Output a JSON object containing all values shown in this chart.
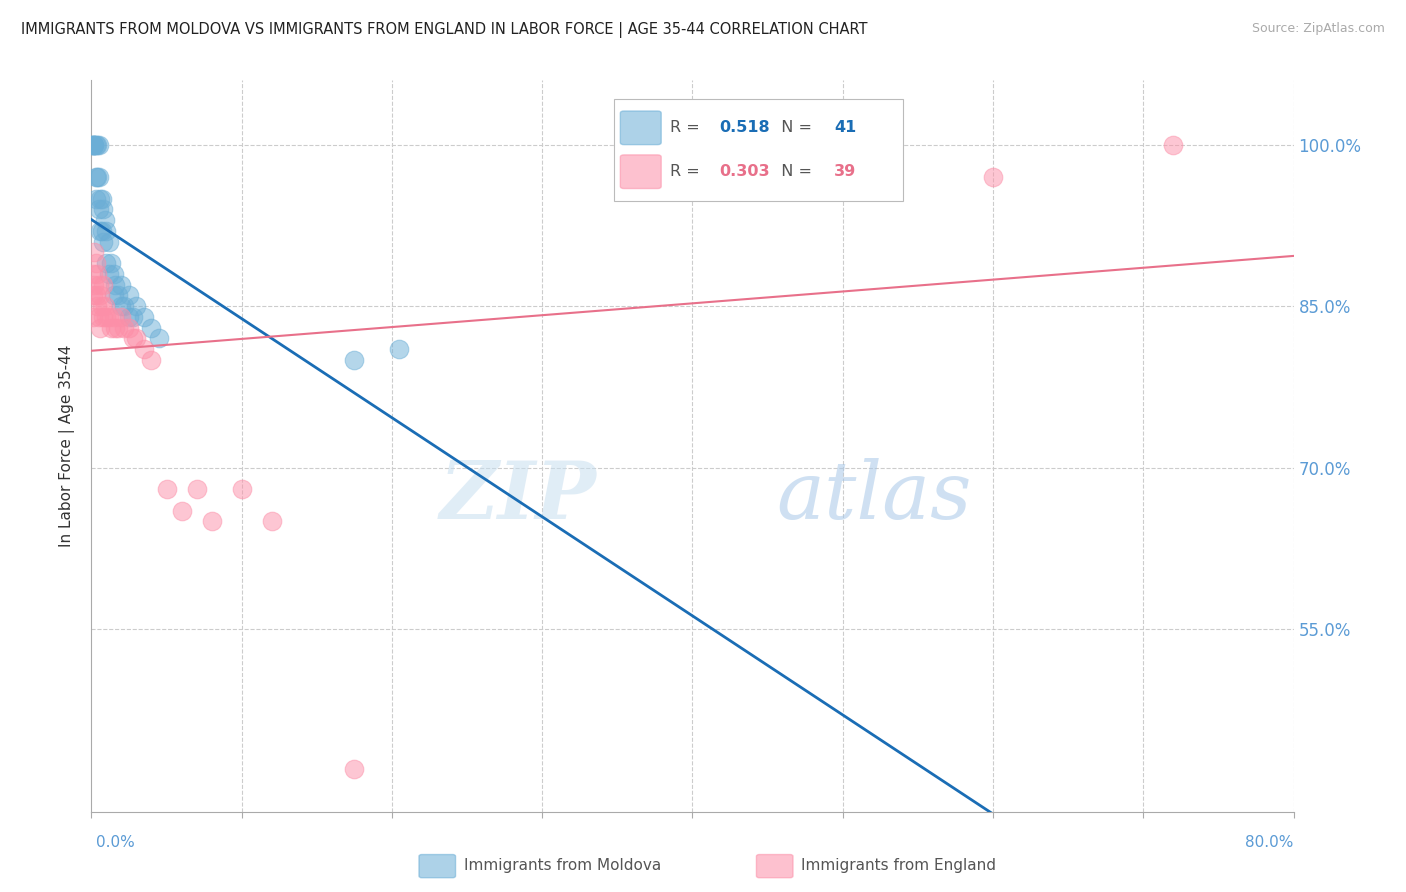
{
  "title": "IMMIGRANTS FROM MOLDOVA VS IMMIGRANTS FROM ENGLAND IN LABOR FORCE | AGE 35-44 CORRELATION CHART",
  "source": "Source: ZipAtlas.com",
  "ylabel": "In Labor Force | Age 35-44",
  "xmin": 0.0,
  "xmax": 0.8,
  "ymin": 0.38,
  "ymax": 1.06,
  "ytick_vals": [
    0.55,
    0.7,
    0.85,
    1.0
  ],
  "ytick_labels": [
    "55.0%",
    "70.0%",
    "85.0%",
    "100.0%"
  ],
  "legend_r_moldova": "0.518",
  "legend_n_moldova": "41",
  "legend_r_england": "0.303",
  "legend_n_england": "39",
  "moldova_color": "#6baed6",
  "england_color": "#fc8fa8",
  "trendline_moldova_color": "#1a6db5",
  "trendline_england_color": "#e8708a",
  "moldova_x": [
    0.001,
    0.001,
    0.001,
    0.002,
    0.002,
    0.003,
    0.003,
    0.003,
    0.004,
    0.004,
    0.005,
    0.005,
    0.005,
    0.006,
    0.006,
    0.007,
    0.007,
    0.008,
    0.008,
    0.009,
    0.01,
    0.01,
    0.012,
    0.012,
    0.013,
    0.015,
    0.015,
    0.016,
    0.018,
    0.02,
    0.02,
    0.022,
    0.025,
    0.025,
    0.028,
    0.03,
    0.035,
    0.04,
    0.045,
    0.175,
    0.205
  ],
  "moldova_y": [
    1.0,
    1.0,
    1.0,
    1.0,
    1.0,
    1.0,
    0.97,
    0.95,
    1.0,
    0.97,
    1.0,
    0.97,
    0.94,
    0.95,
    0.92,
    0.95,
    0.92,
    0.94,
    0.91,
    0.93,
    0.92,
    0.89,
    0.91,
    0.88,
    0.89,
    0.88,
    0.86,
    0.87,
    0.86,
    0.87,
    0.85,
    0.85,
    0.86,
    0.84,
    0.84,
    0.85,
    0.84,
    0.83,
    0.82,
    0.8,
    0.81
  ],
  "england_x": [
    0.001,
    0.001,
    0.001,
    0.002,
    0.002,
    0.003,
    0.003,
    0.004,
    0.004,
    0.005,
    0.005,
    0.006,
    0.006,
    0.007,
    0.008,
    0.008,
    0.009,
    0.01,
    0.012,
    0.013,
    0.015,
    0.016,
    0.018,
    0.02,
    0.022,
    0.025,
    0.028,
    0.03,
    0.035,
    0.04,
    0.05,
    0.06,
    0.07,
    0.08,
    0.1,
    0.12,
    0.175,
    0.6,
    0.72
  ],
  "england_y": [
    0.88,
    0.86,
    0.84,
    0.9,
    0.87,
    0.89,
    0.86,
    0.88,
    0.85,
    0.87,
    0.84,
    0.86,
    0.83,
    0.85,
    0.87,
    0.84,
    0.85,
    0.84,
    0.84,
    0.83,
    0.84,
    0.83,
    0.83,
    0.84,
    0.83,
    0.83,
    0.82,
    0.82,
    0.81,
    0.8,
    0.68,
    0.66,
    0.68,
    0.65,
    0.68,
    0.65,
    0.42,
    0.97,
    1.0
  ],
  "watermark_zip": "ZIP",
  "watermark_atlas": "atlas",
  "background_color": "#ffffff",
  "grid_color": "#cccccc",
  "tick_color": "#5b9bd5"
}
